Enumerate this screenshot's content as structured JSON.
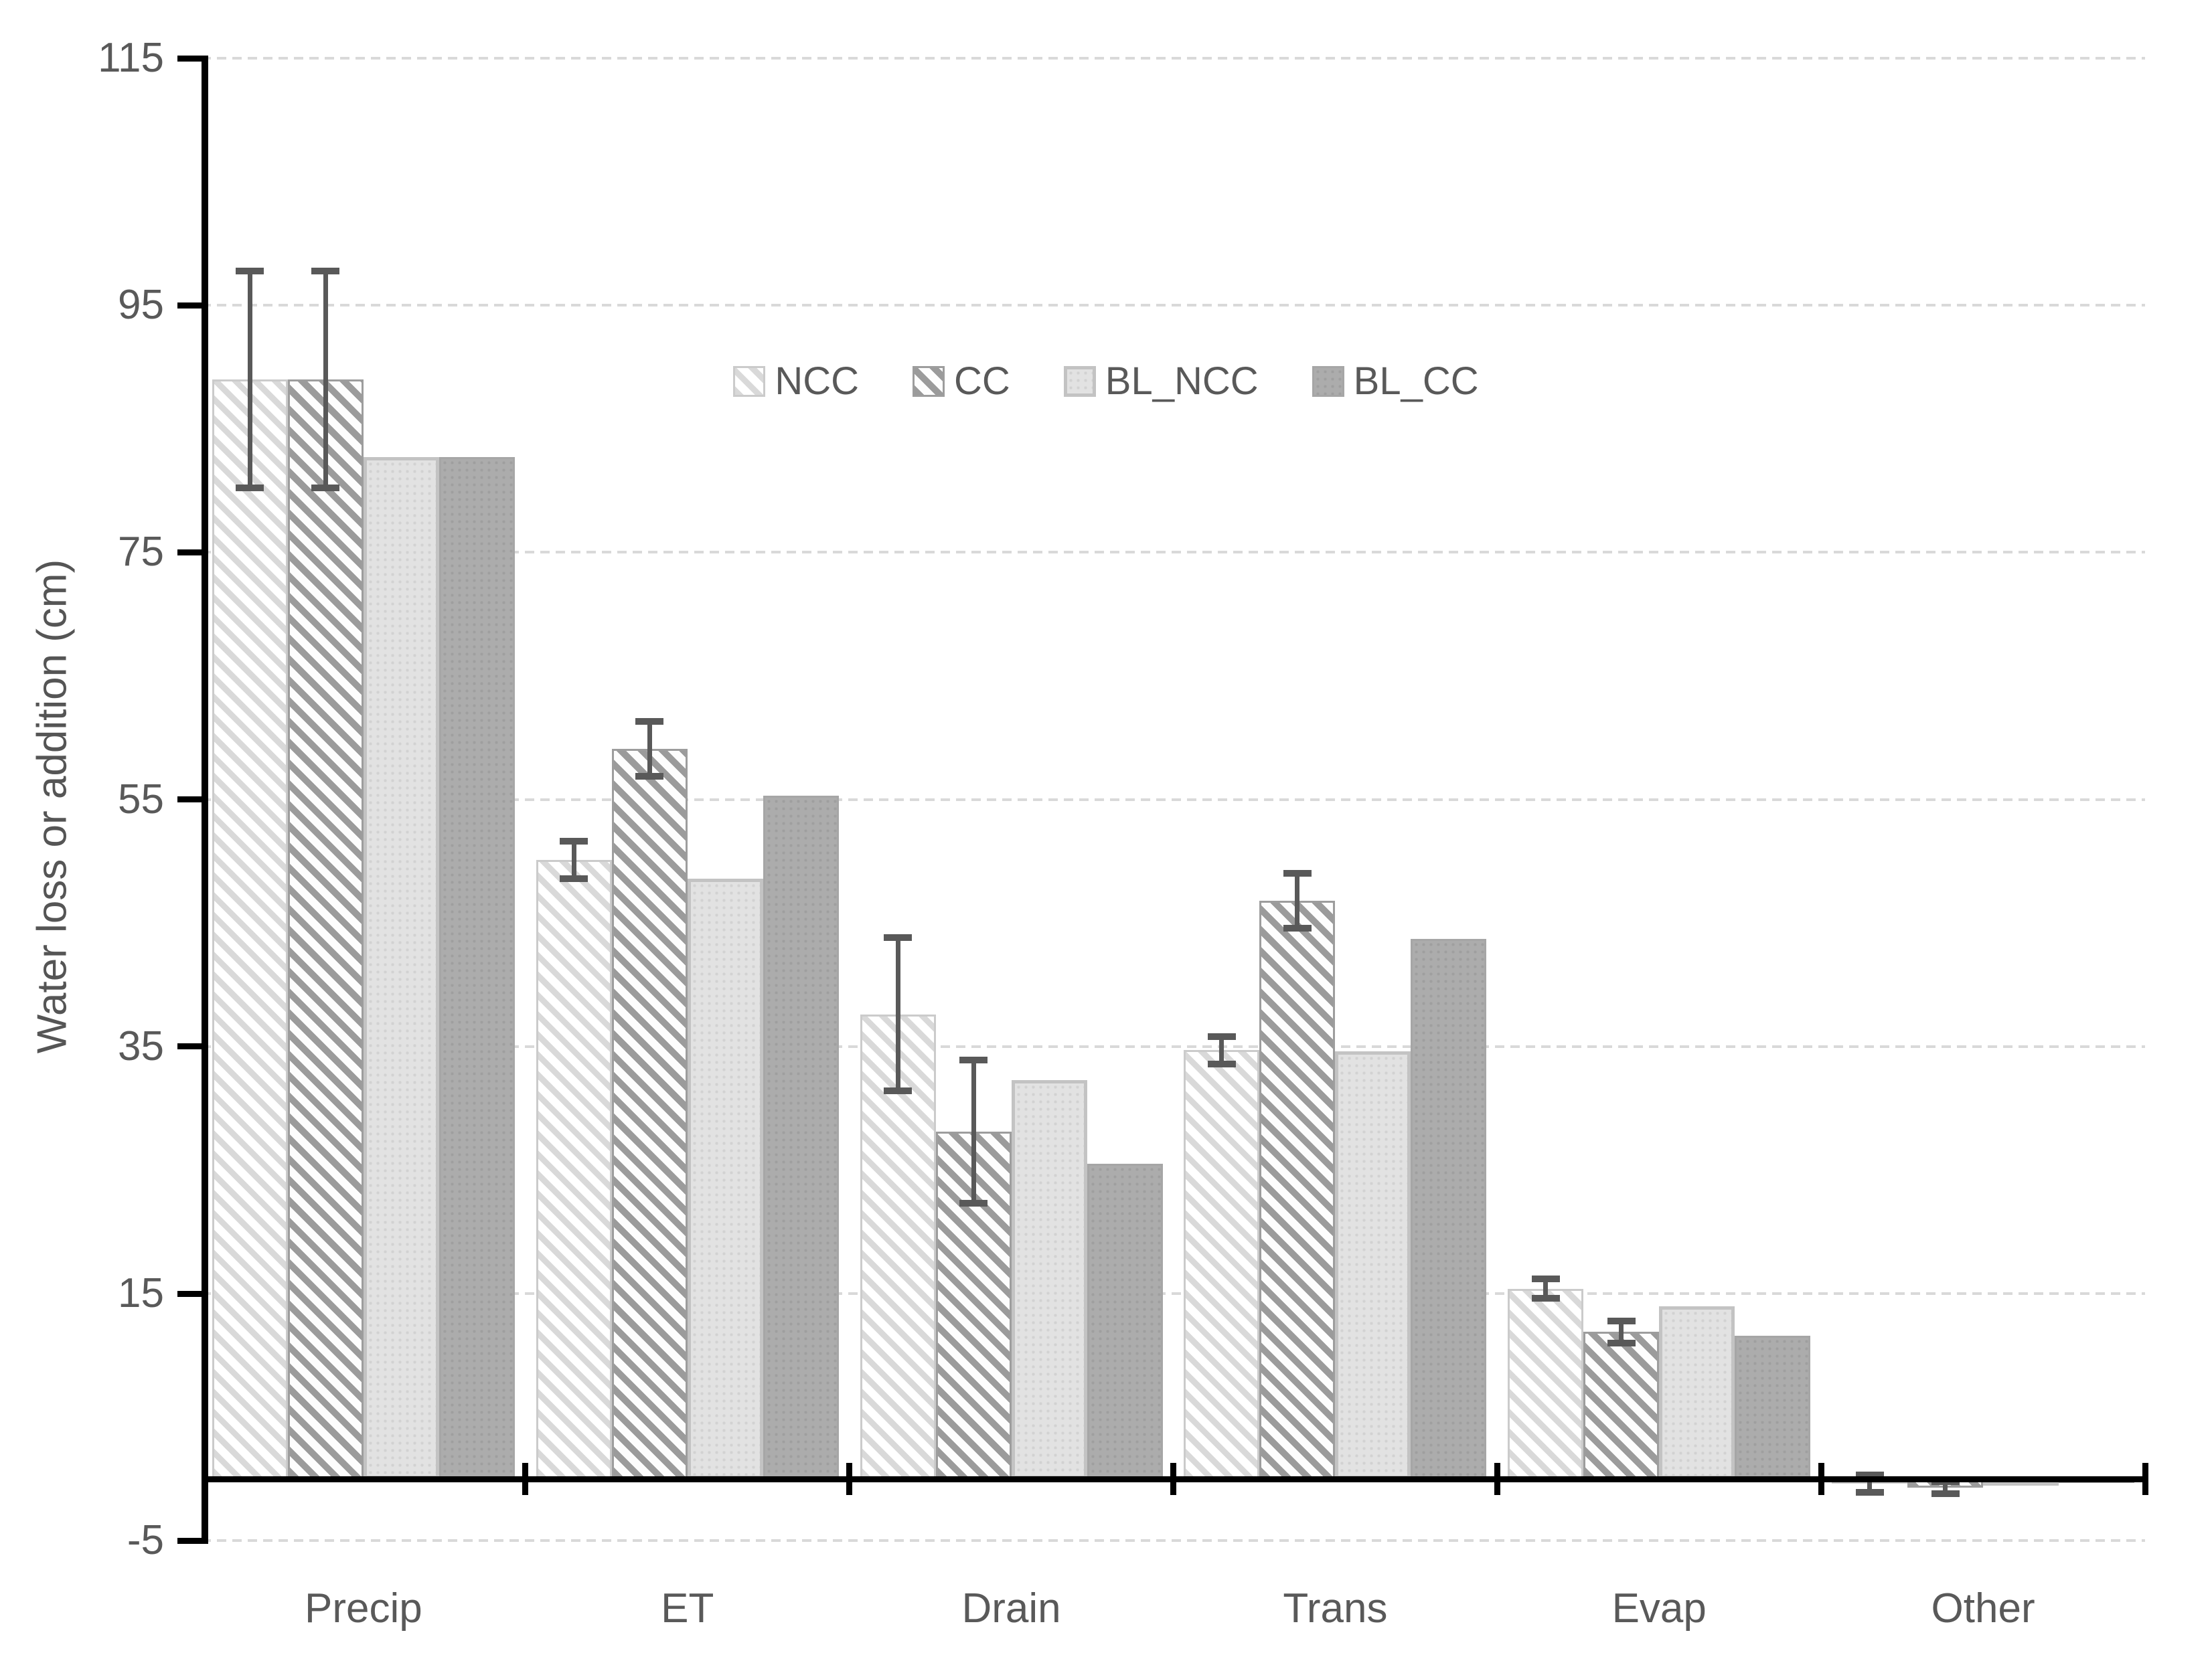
{
  "legend": {
    "items": [
      "NCC",
      "CC",
      "BL_NCC",
      "BL_CC"
    ]
  },
  "y_axis": {
    "title": "Water loss or addition (cm)",
    "ticks": [
      115,
      95,
      75,
      55,
      35,
      15,
      -5
    ]
  },
  "x_axis": {
    "categories": [
      "Precip",
      "ET",
      "Drain",
      "Trans",
      "Evap",
      "Other"
    ]
  },
  "colors": {
    "axis": "#000000",
    "tick_text": "#595959",
    "gridline": "#d9d9d9",
    "error_bar": "#595959",
    "ncc_hatch": "#d9d9d9",
    "cc_hatch": "#9b9b9b",
    "bl_ncc_fill": "#e2e2e2",
    "bl_cc_fill": "#acacac"
  },
  "chart_data": {
    "type": "bar",
    "title": "",
    "xlabel": "",
    "ylabel": "Water loss or addition (cm)",
    "ylim": [
      -5,
      115
    ],
    "yticks": [
      115,
      95,
      75,
      55,
      35,
      15,
      -5
    ],
    "grid": true,
    "gridline_style": "dashed",
    "legend_position": "top-center",
    "categories": [
      "Precip",
      "ET",
      "Drain",
      "Trans",
      "Evap",
      "Other"
    ],
    "series": [
      {
        "name": "NCC",
        "pattern": "light-diagonal-hatch",
        "values": [
          89.0,
          50.1,
          37.6,
          34.7,
          15.4,
          -0.4
        ],
        "error_bars": [
          8.8,
          1.5,
          6.2,
          1.1,
          0.8,
          0.7
        ]
      },
      {
        "name": "CC",
        "pattern": "dark-diagonal-hatch",
        "values": [
          89.0,
          59.1,
          28.1,
          46.8,
          11.9,
          -0.7
        ],
        "error_bars": [
          8.8,
          2.2,
          5.8,
          2.2,
          0.9,
          0.5
        ]
      },
      {
        "name": "BL_NCC",
        "pattern": "solid-light-gray",
        "values": [
          82.7,
          48.6,
          32.3,
          34.6,
          14.0,
          -0.4
        ],
        "error_bars": null
      },
      {
        "name": "BL_CC",
        "pattern": "solid-dark-gray",
        "values": [
          82.7,
          55.3,
          25.5,
          43.7,
          11.6,
          -0.3
        ],
        "error_bars": null
      }
    ]
  }
}
